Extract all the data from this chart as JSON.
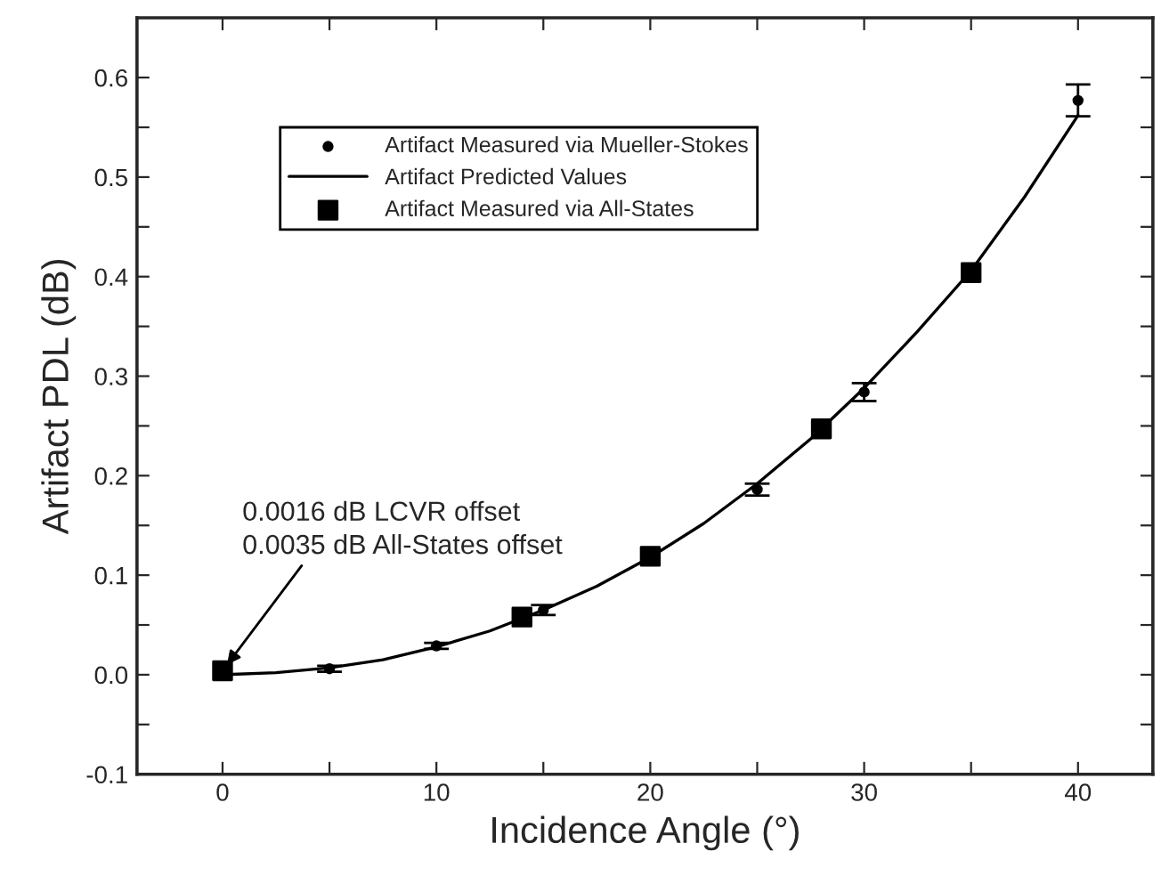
{
  "chart_data": {
    "type": "scatter",
    "xlabel": "Incidence Angle (°)",
    "ylabel": "Artifact PDL (dB)",
    "xlim": [
      -4,
      43.5
    ],
    "ylim": [
      -0.1,
      0.66
    ],
    "xticks": [
      0,
      {
        "value": 5,
        "label": null
      },
      10,
      {
        "value": 15,
        "label": null
      },
      20,
      {
        "value": 25,
        "label": null
      },
      30,
      {
        "value": 35,
        "label": null
      },
      40
    ],
    "yticks": [
      -0.1,
      {
        "value": -0.05,
        "label": null
      },
      {
        "value": 0,
        "label": "0.0"
      },
      {
        "value": 0.05,
        "label": null
      },
      0.1,
      {
        "value": 0.15,
        "label": null
      },
      0.2,
      {
        "value": 0.25,
        "label": null
      },
      0.3,
      {
        "value": 0.35,
        "label": null
      },
      0.4,
      {
        "value": 0.45,
        "label": null
      },
      0.5,
      {
        "value": 0.55,
        "label": null
      },
      0.6
    ],
    "grid": false,
    "legend": "top left",
    "series": [
      {
        "name": "Artifact Measured via Mueller-Stokes",
        "marker": "circle",
        "color": "#000000",
        "x": [
          5,
          10,
          15,
          25,
          30,
          40
        ],
        "values": [
          0.006,
          0.029,
          0.065,
          0.186,
          0.284,
          0.577
        ],
        "errors": [
          0.003,
          0.003,
          0.005,
          0.006,
          0.009,
          0.016
        ]
      },
      {
        "name": "Artifact Predicted Values",
        "type": "line",
        "marker": "none",
        "line_style": "solid",
        "color": "#000000",
        "x": [
          0,
          2.5,
          5,
          7.5,
          10,
          12.5,
          15,
          17.5,
          20,
          22.5,
          25,
          27.5,
          30,
          32.5,
          35,
          37.5,
          40
        ],
        "values": [
          0,
          0.002,
          0.007,
          0.015,
          0.028,
          0.044,
          0.065,
          0.089,
          0.118,
          0.152,
          0.192,
          0.237,
          0.288,
          0.345,
          0.406,
          0.48,
          0.562
        ]
      },
      {
        "name": "Artifact Measured via All-States",
        "marker": "square",
        "color": "#000000",
        "x": [
          0,
          14,
          20,
          28,
          35
        ],
        "values": [
          0.004,
          0.058,
          0.119,
          0.247,
          0.404
        ]
      }
    ],
    "annotations": [
      {
        "text": "0.0016 dB LCVR offset\n0.0035 dB All-States offset",
        "x": 0,
        "y": 0.004
      }
    ]
  }
}
